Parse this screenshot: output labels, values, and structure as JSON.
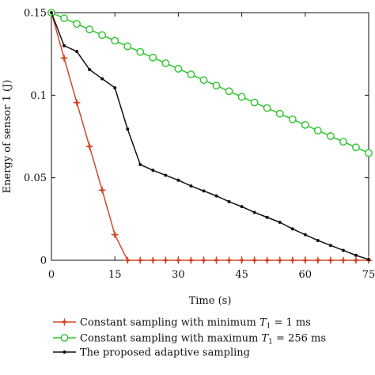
{
  "chart_data": {
    "type": "line",
    "xlabel": "Time (s)",
    "ylabel": "Energy of sensor 1 (J)",
    "xlim": [
      0,
      75
    ],
    "ylim": [
      0,
      0.15
    ],
    "xticks": [
      0,
      15,
      30,
      45,
      60,
      75
    ],
    "yticks": [
      0,
      0.05,
      0.1,
      0.15
    ],
    "xtick_labels": [
      "0",
      "15",
      "30",
      "45",
      "60",
      "75"
    ],
    "ytick_labels": [
      "0",
      "0.05",
      "0.1",
      "0.15"
    ],
    "grid": false,
    "legend_position": "bottom",
    "series": [
      {
        "name": "Constant sampling with minimum T1 = 1 ms",
        "legend_prefix": "Constant sampling with minimum ",
        "legend_var": "T",
        "legend_sub": "1",
        "legend_suffix": " = 1 ms",
        "color": "#d2492a",
        "marker": "star",
        "x": [
          0,
          3,
          6,
          9,
          12,
          15,
          18,
          21,
          24,
          27,
          30,
          33,
          36,
          39,
          42,
          45,
          48,
          51,
          54,
          57,
          60,
          63,
          66,
          69,
          72,
          75
        ],
        "y": [
          0.15,
          0.1225,
          0.0955,
          0.069,
          0.0425,
          0.0155,
          0,
          0,
          0,
          0,
          0,
          0,
          0,
          0,
          0,
          0,
          0,
          0,
          0,
          0,
          0,
          0,
          0,
          0,
          0,
          0
        ]
      },
      {
        "name": "Constant sampling with maximum T1 = 256 ms",
        "legend_prefix": "Constant sampling with maximum ",
        "legend_var": "T",
        "legend_sub": "1",
        "legend_suffix": " = 256 ms",
        "color": "#2ec42e",
        "marker": "circle",
        "x": [
          0,
          3,
          6,
          9,
          12,
          15,
          18,
          21,
          24,
          27,
          30,
          33,
          36,
          39,
          42,
          45,
          48,
          51,
          54,
          57,
          60,
          63,
          66,
          69,
          72,
          75
        ],
        "y": [
          0.15,
          0.1466,
          0.1432,
          0.1398,
          0.1364,
          0.133,
          0.1296,
          0.1262,
          0.1228,
          0.1194,
          0.116,
          0.1126,
          0.1092,
          0.1058,
          0.1024,
          0.099,
          0.0956,
          0.0922,
          0.0888,
          0.0854,
          0.082,
          0.0786,
          0.0752,
          0.0718,
          0.0684,
          0.065
        ]
      },
      {
        "name": "The proposed adaptive sampling",
        "legend_prefix": "The proposed adaptive sampling",
        "legend_var": "",
        "legend_sub": "",
        "legend_suffix": "",
        "color": "#111111",
        "marker": "dot",
        "x": [
          0,
          3,
          6,
          9,
          12,
          15,
          18,
          21,
          24,
          27,
          30,
          33,
          36,
          39,
          42,
          45,
          48,
          51,
          54,
          57,
          60,
          63,
          66,
          69,
          72,
          75
        ],
        "y": [
          0.15,
          0.13,
          0.1265,
          0.1155,
          0.11,
          0.1045,
          0.0795,
          0.058,
          0.0545,
          0.0515,
          0.0485,
          0.045,
          0.042,
          0.039,
          0.0355,
          0.0325,
          0.029,
          0.026,
          0.023,
          0.019,
          0.0155,
          0.012,
          0.009,
          0.006,
          0.003,
          0.0005
        ]
      }
    ]
  }
}
